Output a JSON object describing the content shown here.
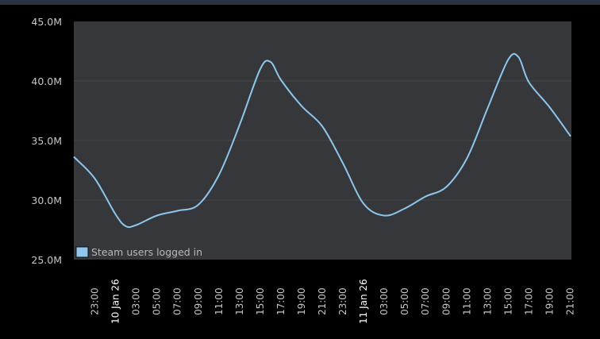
{
  "top_bar_color": "#2a3445",
  "colors": {
    "plot_background": "#35373b",
    "line": "#8ec6ec",
    "gridline": "#45474a",
    "page_background": "#000000"
  },
  "chart_data": {
    "type": "line",
    "title": "",
    "xlabel": "",
    "ylabel": "",
    "ylim": [
      25000000,
      45000000
    ],
    "yticks": [
      "25.0M",
      "30.0M",
      "35.0M",
      "40.0M",
      "45.0M"
    ],
    "xticks": [
      "23:00",
      "10 Jan 26",
      "03:00",
      "05:00",
      "07:00",
      "09:00",
      "11:00",
      "13:00",
      "15:00",
      "17:00",
      "19:00",
      "21:00",
      "23:00",
      "11 Jan 26",
      "03:00",
      "05:00",
      "07:00",
      "09:00",
      "11:00",
      "13:00",
      "15:00",
      "17:00",
      "19:00",
      "21:00"
    ],
    "date_ticks": [
      "10 Jan 26",
      "11 Jan 26"
    ],
    "grid": true,
    "legend_position": "bottom-left inside plot",
    "series": [
      {
        "name": "Steam users logged in",
        "color": "#8ec6ec",
        "hours": [
          0,
          2,
          4,
          5,
          6,
          8,
          10,
          12,
          14,
          16,
          18,
          19,
          20,
          22,
          24,
          26,
          28,
          30,
          32,
          34,
          36,
          38,
          40,
          42,
          43,
          44,
          46,
          48
        ],
        "x": [
          "09 Jan 21:00",
          "23:00",
          "10 Jan 01:00",
          "02:00",
          "03:00",
          "05:00",
          "07:00",
          "09:00",
          "11:00",
          "13:00",
          "15:00",
          "16:00",
          "17:00",
          "19:00",
          "21:00",
          "23:00",
          "11 Jan 01:00",
          "03:00",
          "05:00",
          "07:00",
          "09:00",
          "11:00",
          "13:00",
          "15:00",
          "16:00",
          "17:00",
          "19:00",
          "21:00"
        ],
        "values_millions": [
          33.6,
          31.8,
          28.8,
          27.8,
          27.9,
          28.7,
          29.1,
          29.6,
          32.1,
          36.3,
          41.0,
          41.6,
          40.1,
          37.9,
          36.2,
          33.1,
          29.7,
          28.7,
          29.3,
          30.3,
          31.1,
          33.5,
          37.7,
          41.8,
          42.0,
          39.9,
          37.8,
          35.4
        ]
      }
    ]
  },
  "legend": {
    "label": "Steam users logged in"
  }
}
